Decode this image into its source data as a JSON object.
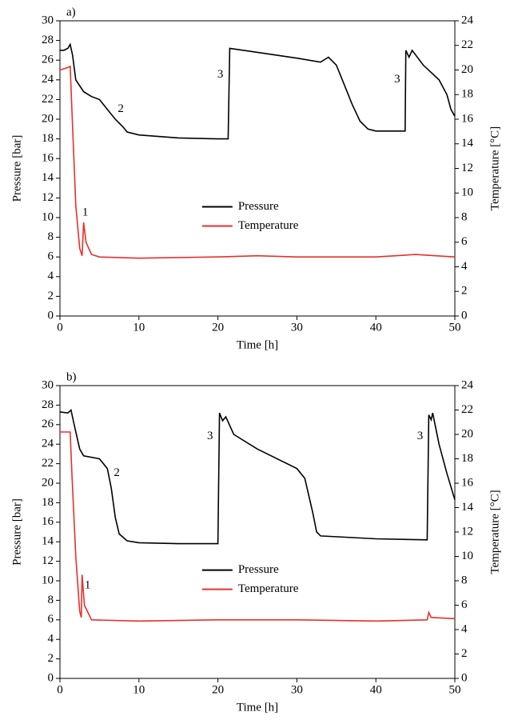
{
  "chart_data": [
    {
      "type": "line",
      "title": "a)",
      "x_label": "Time [h]",
      "y_label": "Pressure [bar]",
      "y2_label": "Temperature [°C]",
      "xlim": [
        0,
        50
      ],
      "xticks": [
        0,
        10,
        20,
        30,
        40,
        50
      ],
      "ylim": [
        0,
        30
      ],
      "yticks": [
        0,
        2,
        4,
        6,
        8,
        10,
        12,
        14,
        16,
        18,
        20,
        22,
        24,
        26,
        28,
        30
      ],
      "y2lim": [
        0,
        24
      ],
      "y2ticks": [
        0,
        2,
        4,
        6,
        8,
        10,
        12,
        14,
        16,
        18,
        20,
        22,
        24
      ],
      "legend": "center",
      "series": [
        {
          "name": "Pressure",
          "color": "#000000",
          "x": [
            0,
            0.5,
            1,
            1.3,
            1.6,
            2,
            3,
            4,
            5,
            6,
            7,
            8,
            8.5,
            10,
            15,
            20,
            21.3,
            21.5,
            25,
            30,
            33,
            34,
            35,
            36,
            37,
            38,
            39,
            40,
            43.7,
            43.8,
            44.2,
            44.6,
            46,
            48,
            49,
            49.5,
            50
          ],
          "values": [
            27,
            27,
            27.2,
            27.6,
            26.5,
            24,
            22.8,
            22.3,
            22,
            21,
            20,
            19.2,
            18.7,
            18.4,
            18.1,
            18,
            18,
            27.2,
            26.8,
            26.2,
            25.8,
            26.3,
            25.5,
            23.5,
            21.5,
            19.8,
            19,
            18.8,
            18.8,
            27,
            26.3,
            27,
            25.5,
            24,
            22.5,
            21,
            20.3
          ]
        },
        {
          "name": "Temperature",
          "color": "#e8302a",
          "axis": "y2",
          "x": [
            0,
            1,
            1.3,
            1.5,
            2,
            2.5,
            2.8,
            3,
            3.3,
            4,
            5,
            10,
            20,
            25,
            30,
            40,
            45,
            50
          ],
          "values": [
            20,
            20.2,
            20.3,
            17,
            9,
            5.5,
            4.9,
            7.6,
            6,
            5,
            4.8,
            4.7,
            4.8,
            4.9,
            4.8,
            4.8,
            5,
            4.8
          ]
        }
      ],
      "annotations": [
        {
          "text": "1",
          "x": 3.2,
          "y": 10.5
        },
        {
          "text": "2",
          "x": 7.7,
          "y": 21
        },
        {
          "text": "3",
          "x": 20.3,
          "y": 24.5
        },
        {
          "text": "3",
          "x": 42.7,
          "y": 24
        }
      ]
    },
    {
      "type": "line",
      "title": "b)",
      "x_label": "Time [h]",
      "y_label": "Pressure [bar]",
      "y2_label": "Temperature [°C]",
      "xlim": [
        0,
        50
      ],
      "xticks": [
        0,
        10,
        20,
        30,
        40,
        50
      ],
      "ylim": [
        0,
        30
      ],
      "yticks": [
        0,
        2,
        4,
        6,
        8,
        10,
        12,
        14,
        16,
        18,
        20,
        22,
        24,
        26,
        28,
        30
      ],
      "y2lim": [
        0,
        24
      ],
      "y2ticks": [
        0,
        2,
        4,
        6,
        8,
        10,
        12,
        14,
        16,
        18,
        20,
        22,
        24
      ],
      "legend": "center",
      "series": [
        {
          "name": "Pressure",
          "color": "#000000",
          "x": [
            0,
            1,
            1.4,
            1.8,
            2.5,
            3,
            5,
            6,
            6.5,
            7,
            7.5,
            8.5,
            10,
            15,
            20,
            20.2,
            20.6,
            21,
            22,
            25,
            30,
            31,
            32,
            32.5,
            33,
            40,
            46.5,
            46.7,
            47,
            47.2,
            48,
            49,
            50
          ],
          "values": [
            27.3,
            27.2,
            27.5,
            26,
            23.5,
            22.8,
            22.5,
            21.5,
            19.5,
            16.5,
            14.8,
            14.1,
            13.9,
            13.8,
            13.8,
            27.2,
            26.4,
            26.8,
            25,
            23.5,
            21.5,
            20.5,
            17,
            15,
            14.6,
            14.3,
            14.2,
            27,
            26.5,
            27.2,
            24,
            21,
            18.3
          ]
        },
        {
          "name": "Temperature",
          "color": "#e8302a",
          "axis": "y2",
          "x": [
            0,
            1.3,
            1.5,
            2,
            2.5,
            2.7,
            2.8,
            3.1,
            4,
            10,
            20,
            30,
            40,
            46.5,
            46.7,
            47,
            50
          ],
          "values": [
            20.2,
            20.2,
            17,
            10,
            5.5,
            5,
            8.5,
            6,
            4.8,
            4.7,
            4.8,
            4.8,
            4.7,
            4.8,
            5.4,
            5,
            4.9
          ]
        }
      ],
      "annotations": [
        {
          "text": "1",
          "x": 3.5,
          "y": 9.5
        },
        {
          "text": "2",
          "x": 7.2,
          "y": 21
        },
        {
          "text": "3",
          "x": 19,
          "y": 24.8
        },
        {
          "text": "3",
          "x": 45.6,
          "y": 24.8
        }
      ]
    }
  ]
}
